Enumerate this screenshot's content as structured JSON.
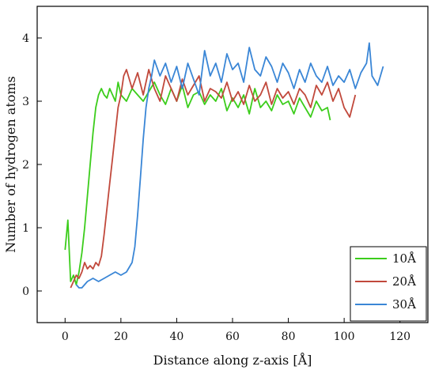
{
  "chart_data": {
    "type": "line",
    "xlabel": "Distance along z-axis [Å]",
    "ylabel": "Number of hydrogen atoms",
    "xlim": [
      -10,
      130
    ],
    "ylim": [
      -0.5,
      4.5
    ],
    "xticks": [
      0,
      20,
      40,
      60,
      80,
      100,
      120
    ],
    "yticks": [
      0,
      1,
      2,
      3,
      4
    ],
    "grid": false,
    "legend_position": "bottom-right",
    "series": [
      {
        "name": "10Å",
        "color": "#3ccd1c",
        "x": [
          0,
          1,
          2,
          3,
          4,
          5,
          6,
          7,
          8,
          9,
          10,
          11,
          12,
          13,
          14,
          15,
          16,
          17,
          18,
          19,
          20,
          22,
          24,
          26,
          28,
          30,
          32,
          34,
          36,
          38,
          40,
          42,
          44,
          46,
          48,
          50,
          52,
          54,
          56,
          58,
          60,
          62,
          64,
          66,
          68,
          70,
          72,
          74,
          76,
          78,
          80,
          82,
          84,
          86,
          88,
          90,
          92,
          94,
          95
        ],
        "y": [
          0.65,
          1.12,
          0.15,
          0.25,
          0.1,
          0.3,
          0.6,
          1.0,
          1.5,
          2.0,
          2.5,
          2.9,
          3.1,
          3.2,
          3.1,
          3.05,
          3.2,
          3.1,
          3.0,
          3.3,
          3.1,
          3.0,
          3.2,
          3.1,
          3.0,
          3.15,
          3.3,
          3.1,
          2.95,
          3.2,
          3.0,
          3.25,
          2.9,
          3.1,
          3.15,
          2.95,
          3.1,
          3.0,
          3.2,
          2.85,
          3.05,
          2.9,
          3.1,
          2.8,
          3.2,
          2.9,
          3.0,
          2.85,
          3.1,
          2.95,
          3.0,
          2.8,
          3.05,
          2.9,
          2.75,
          3.0,
          2.85,
          2.9,
          2.7
        ]
      },
      {
        "name": "20Å",
        "color": "#c1493c",
        "x": [
          2,
          3,
          4,
          5,
          6,
          7,
          8,
          9,
          10,
          11,
          12,
          13,
          14,
          15,
          16,
          17,
          18,
          19,
          20,
          21,
          22,
          24,
          26,
          28,
          30,
          32,
          34,
          36,
          38,
          40,
          42,
          44,
          46,
          48,
          50,
          52,
          54,
          56,
          58,
          60,
          62,
          64,
          66,
          68,
          70,
          72,
          74,
          76,
          78,
          80,
          82,
          84,
          86,
          88,
          90,
          92,
          94,
          96,
          98,
          100,
          102,
          104
        ],
        "y": [
          0.05,
          0.15,
          0.25,
          0.2,
          0.3,
          0.45,
          0.35,
          0.4,
          0.35,
          0.45,
          0.4,
          0.55,
          0.9,
          1.3,
          1.7,
          2.1,
          2.5,
          2.9,
          3.1,
          3.4,
          3.5,
          3.2,
          3.45,
          3.1,
          3.5,
          3.2,
          3.0,
          3.4,
          3.2,
          3.0,
          3.35,
          3.1,
          3.25,
          3.4,
          3.0,
          3.2,
          3.15,
          3.05,
          3.3,
          3.0,
          3.15,
          2.95,
          3.25,
          3.0,
          3.1,
          3.3,
          2.95,
          3.2,
          3.05,
          3.15,
          2.95,
          3.2,
          3.1,
          2.9,
          3.25,
          3.1,
          3.3,
          3.0,
          3.2,
          2.9,
          2.75,
          3.1
        ]
      },
      {
        "name": "30Å",
        "color": "#3a86d6",
        "x": [
          4,
          5,
          6,
          8,
          10,
          12,
          14,
          16,
          18,
          20,
          22,
          24,
          25,
          26,
          27,
          28,
          29,
          30,
          31,
          32,
          34,
          36,
          38,
          40,
          42,
          44,
          46,
          48,
          50,
          52,
          54,
          56,
          58,
          60,
          62,
          64,
          66,
          68,
          70,
          72,
          74,
          76,
          78,
          80,
          82,
          84,
          86,
          88,
          90,
          92,
          94,
          96,
          98,
          100,
          102,
          104,
          106,
          108,
          109,
          110,
          112,
          114
        ],
        "y": [
          0.1,
          0.05,
          0.05,
          0.15,
          0.2,
          0.15,
          0.2,
          0.25,
          0.3,
          0.25,
          0.3,
          0.45,
          0.7,
          1.2,
          1.8,
          2.4,
          2.9,
          3.2,
          3.4,
          3.65,
          3.4,
          3.6,
          3.3,
          3.55,
          3.2,
          3.6,
          3.35,
          3.1,
          3.8,
          3.4,
          3.6,
          3.3,
          3.75,
          3.5,
          3.6,
          3.3,
          3.85,
          3.5,
          3.4,
          3.7,
          3.55,
          3.3,
          3.6,
          3.45,
          3.2,
          3.5,
          3.3,
          3.6,
          3.4,
          3.3,
          3.55,
          3.25,
          3.4,
          3.3,
          3.5,
          3.2,
          3.45,
          3.6,
          3.92,
          3.4,
          3.25,
          3.55
        ]
      }
    ]
  }
}
